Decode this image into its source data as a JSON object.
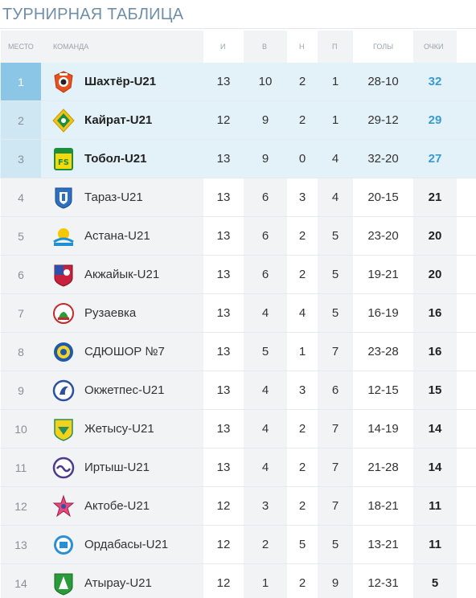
{
  "title": "ТУРНИРНАЯ ТАБЛИЦА",
  "headers": {
    "place": "МЕСТО",
    "team": "КОМАНДА",
    "played": "И",
    "won": "В",
    "drawn": "Н",
    "lost": "П",
    "goals": "ГОЛЫ",
    "points": "ОЧКИ"
  },
  "colors": {
    "accent": "#3a9ad2",
    "highlight_row": "#e3f1f8",
    "first_place": "#8cc6e6",
    "title": "#6f8fa8"
  },
  "rows": [
    {
      "rank": "1",
      "team": "Шахтёр-U21",
      "logo": "shakhtyor-logo",
      "played": "13",
      "won": "10",
      "drawn": "2",
      "lost": "1",
      "goals": "28-10",
      "points": "32"
    },
    {
      "rank": "2",
      "team": "Кайрат-U21",
      "logo": "kairat-logo",
      "played": "12",
      "won": "9",
      "drawn": "2",
      "lost": "1",
      "goals": "29-12",
      "points": "29"
    },
    {
      "rank": "3",
      "team": "Тобол-U21",
      "logo": "tobol-logo",
      "played": "13",
      "won": "9",
      "drawn": "0",
      "lost": "4",
      "goals": "32-20",
      "points": "27"
    },
    {
      "rank": "4",
      "team": "Тараз-U21",
      "logo": "taraz-logo",
      "played": "13",
      "won": "6",
      "drawn": "3",
      "lost": "4",
      "goals": "20-15",
      "points": "21"
    },
    {
      "rank": "5",
      "team": "Астана-U21",
      "logo": "astana-logo",
      "played": "13",
      "won": "6",
      "drawn": "2",
      "lost": "5",
      "goals": "23-20",
      "points": "20"
    },
    {
      "rank": "6",
      "team": "Акжайык-U21",
      "logo": "akzhayik-logo",
      "played": "13",
      "won": "6",
      "drawn": "2",
      "lost": "5",
      "goals": "19-21",
      "points": "20"
    },
    {
      "rank": "7",
      "team": "Рузаевка",
      "logo": "ruzaevka-logo",
      "played": "13",
      "won": "4",
      "drawn": "4",
      "lost": "5",
      "goals": "16-19",
      "points": "16"
    },
    {
      "rank": "8",
      "team": "СДЮШОР №7",
      "logo": "sdyushor-logo",
      "played": "13",
      "won": "5",
      "drawn": "1",
      "lost": "7",
      "goals": "23-28",
      "points": "16"
    },
    {
      "rank": "9",
      "team": "Окжетпес-U21",
      "logo": "okzhetpes-logo",
      "played": "13",
      "won": "4",
      "drawn": "3",
      "lost": "6",
      "goals": "12-15",
      "points": "15"
    },
    {
      "rank": "10",
      "team": "Жетысу-U21",
      "logo": "zhetysu-logo",
      "played": "13",
      "won": "4",
      "drawn": "2",
      "lost": "7",
      "goals": "14-19",
      "points": "14"
    },
    {
      "rank": "11",
      "team": "Иртыш-U21",
      "logo": "irtysh-logo",
      "played": "13",
      "won": "4",
      "drawn": "2",
      "lost": "7",
      "goals": "21-28",
      "points": "14"
    },
    {
      "rank": "12",
      "team": "Актобе-U21",
      "logo": "aktobe-logo",
      "played": "12",
      "won": "3",
      "drawn": "2",
      "lost": "7",
      "goals": "18-21",
      "points": "11"
    },
    {
      "rank": "13",
      "team": "Ордабасы-U21",
      "logo": "ordabasy-logo",
      "played": "12",
      "won": "2",
      "drawn": "5",
      "lost": "5",
      "goals": "13-21",
      "points": "11"
    },
    {
      "rank": "14",
      "team": "Атырау-U21",
      "logo": "atyrau-logo",
      "played": "12",
      "won": "1",
      "drawn": "2",
      "lost": "9",
      "goals": "12-31",
      "points": "5"
    }
  ]
}
